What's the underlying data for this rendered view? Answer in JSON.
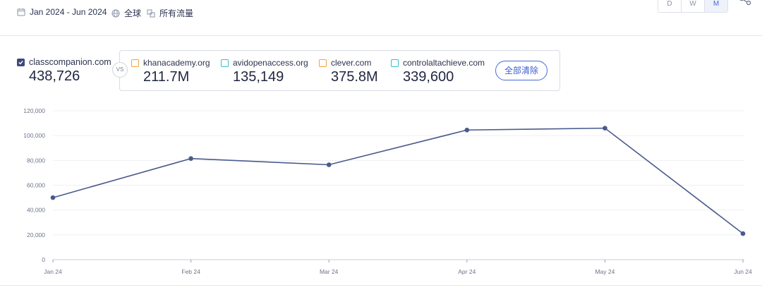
{
  "filters": {
    "date_range": "Jan 2024 - Jun 2024",
    "region": "全球",
    "traffic": "所有流量"
  },
  "granularity": {
    "options": [
      "D",
      "W",
      "M"
    ],
    "selected": "M"
  },
  "primary": {
    "domain": "classcompanion.com",
    "value": "438,726",
    "checked": true
  },
  "vs_label": "VS",
  "competitors": [
    {
      "domain": "khanacademy.org",
      "value": "211.7M",
      "color": "#f0a43a"
    },
    {
      "domain": "avidopenaccess.org",
      "value": "135,149",
      "color": "#35bfc8"
    },
    {
      "domain": "clever.com",
      "value": "375.8M",
      "color": "#f0a43a"
    },
    {
      "domain": "controlaltachieve.com",
      "value": "339,600",
      "color": "#35bfc8"
    }
  ],
  "clear_all_label": "全部清除",
  "chart_data": {
    "type": "line",
    "categories": [
      "Jan 24",
      "Feb 24",
      "Mar 24",
      "Apr 24",
      "May 24",
      "Jun 24"
    ],
    "series": [
      {
        "values": [
          50000,
          81500,
          76500,
          104500,
          106000,
          21000
        ],
        "color": "#4a5a8c"
      }
    ],
    "ylim": [
      0,
      120000
    ],
    "yticks": [
      "0",
      "20,000",
      "40,000",
      "60,000",
      "80,000",
      "100,000",
      "120,000"
    ],
    "ytick_values": [
      0,
      20000,
      40000,
      60000,
      80000,
      100000,
      120000
    ],
    "grid": true
  }
}
